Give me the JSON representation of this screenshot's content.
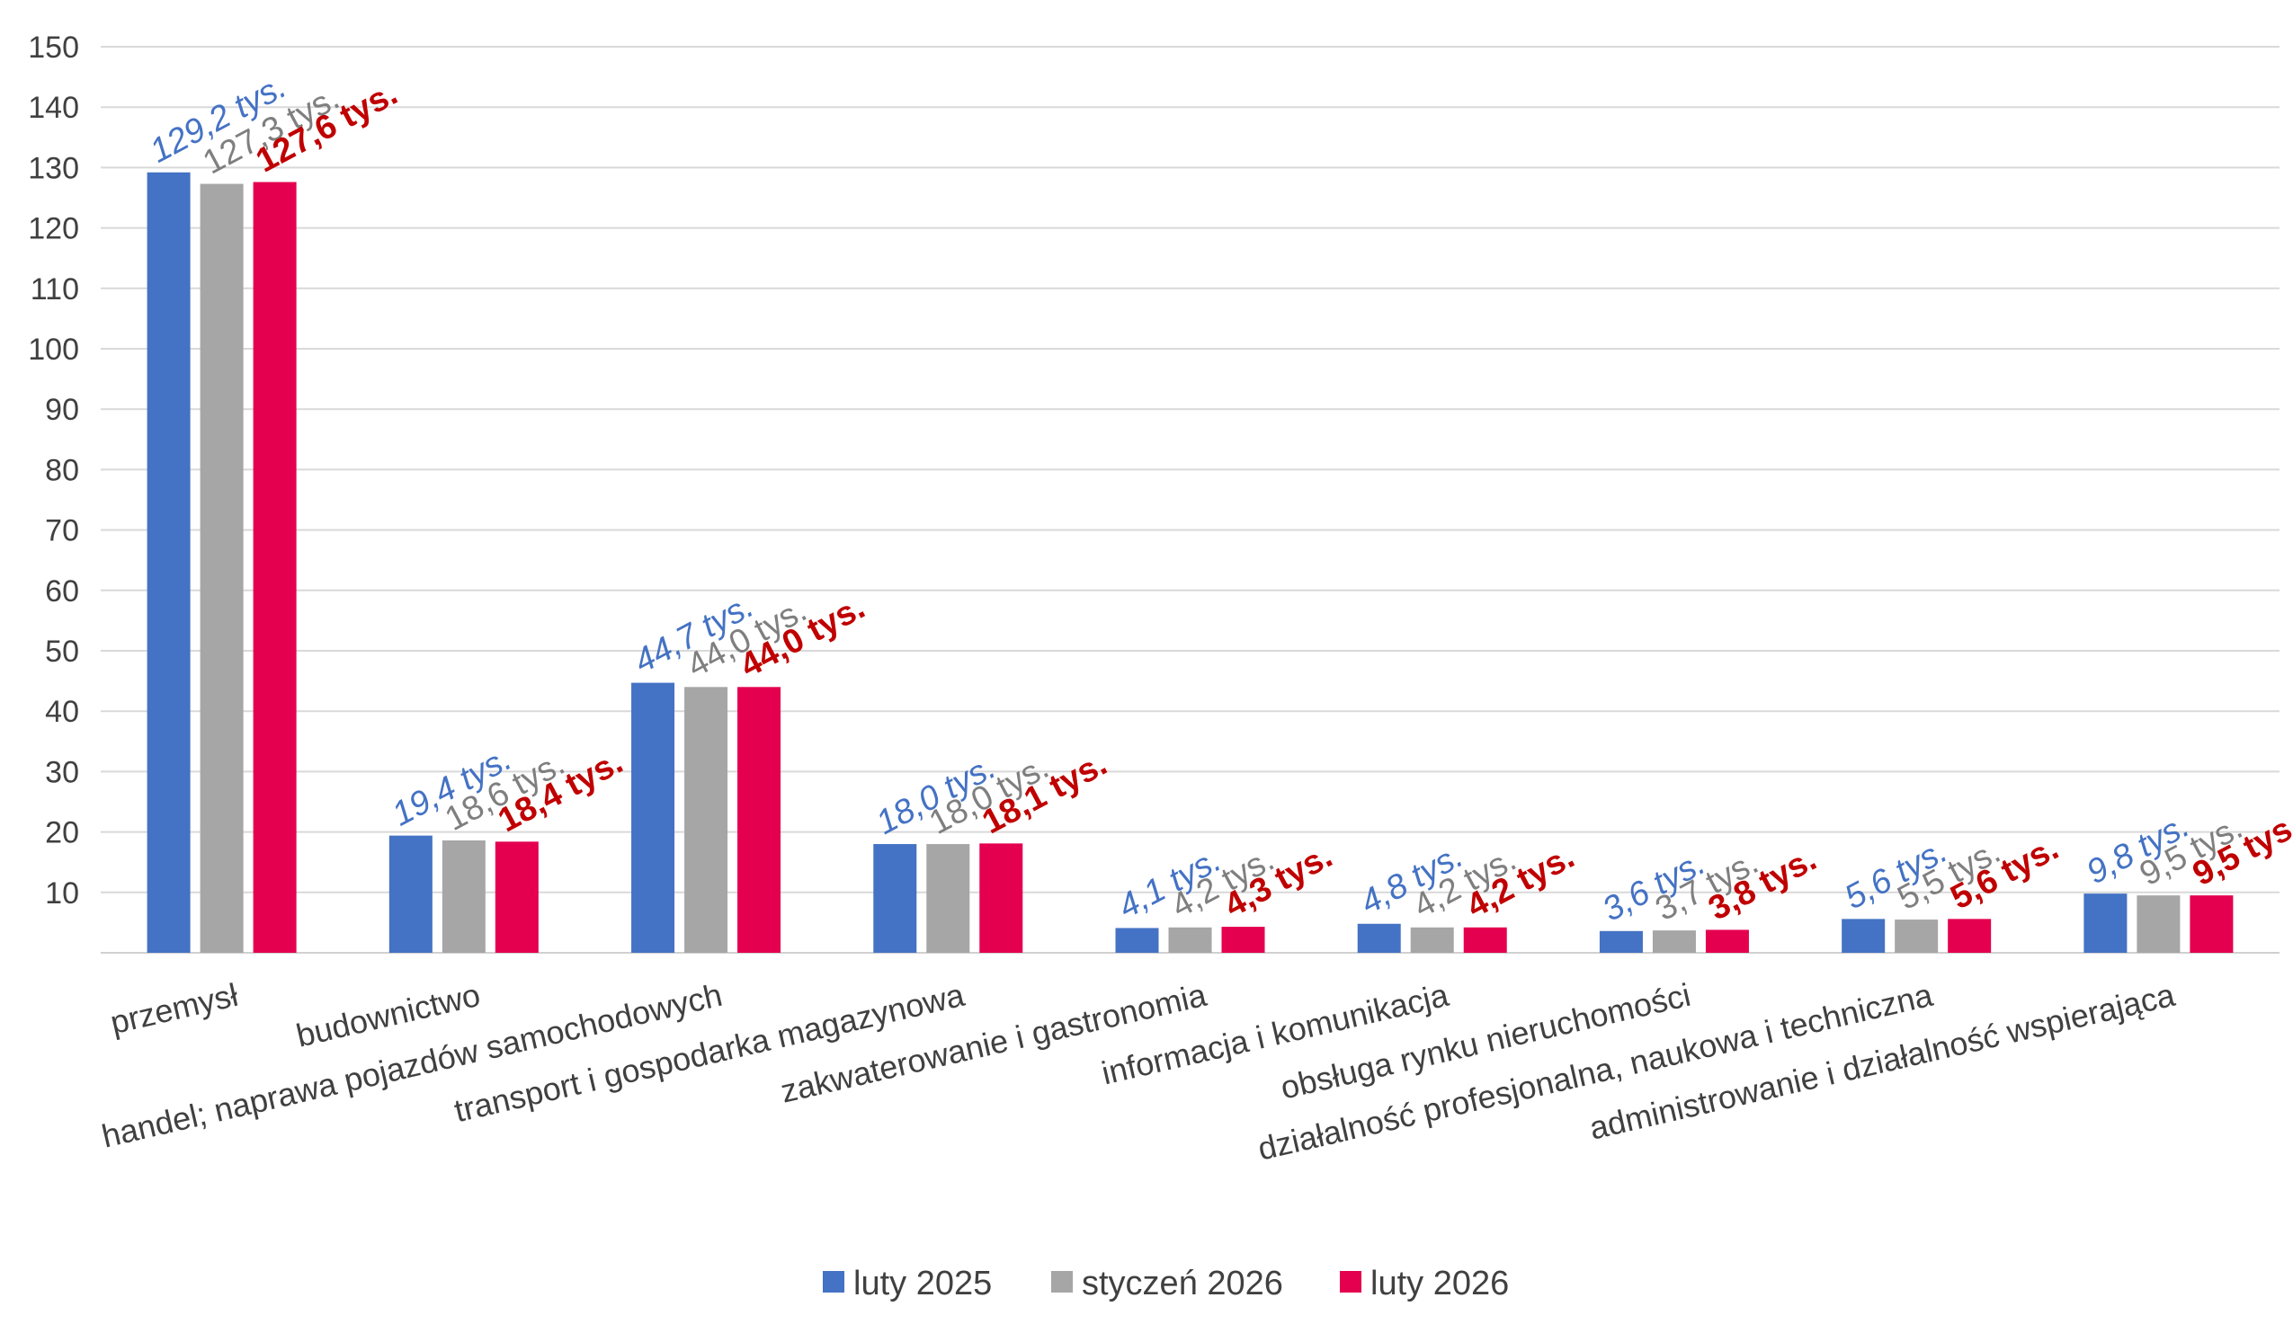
{
  "chart_data": {
    "type": "bar",
    "categories": [
      "przemysł",
      "budownictwo",
      "handel; naprawa pojazdów samochodowych",
      "transport i gospodarka magazynowa",
      "zakwaterowanie i gastronomia",
      "informacja i komunikacja",
      "obsługa rynku nieruchomości",
      "działalność profesjonalna, naukowa i techniczna",
      "administrowanie i działalność wspierająca"
    ],
    "ylim": [
      0,
      150
    ],
    "yticks": [
      "10",
      "20",
      "30",
      "40",
      "50",
      "60",
      "70",
      "80",
      "90",
      "100",
      "110",
      "120",
      "130",
      "140",
      "150"
    ],
    "grid": true,
    "legend_position": "bottom-center",
    "series": [
      {
        "name": "luty 2025",
        "color": "#4472C4",
        "label_color": "#4472C4",
        "label_style": "italic",
        "values": [
          129.2,
          19.4,
          44.7,
          18.0,
          4.1,
          4.8,
          3.6,
          5.6,
          9.8
        ],
        "labels": [
          "129,2 tys.",
          "19,4 tys.",
          "44,7 tys.",
          "18,0 tys.",
          "4,1 tys.",
          "4,8 tys.",
          "3,6 tys.",
          "5,6 tys.",
          "9,8 tys."
        ]
      },
      {
        "name": "styczeń 2026",
        "color": "#A6A6A6",
        "label_color": "#7F7F7F",
        "label_style": "normal",
        "values": [
          127.3,
          18.6,
          44.0,
          18.0,
          4.2,
          4.2,
          3.7,
          5.5,
          9.5
        ],
        "labels": [
          "127,3 tys.",
          "18,6 tys.",
          "44,0 tys.",
          "18,0 tys.",
          "4,2 tys.",
          "4,2 tys.",
          "3,7 tys.",
          "5,5 tys.",
          "9,5 tys."
        ]
      },
      {
        "name": "luty 2026",
        "color": "#E4004F",
        "label_color": "#C00000",
        "label_style": "bold",
        "values": [
          127.6,
          18.4,
          44.0,
          18.1,
          4.3,
          4.2,
          3.8,
          5.6,
          9.5
        ],
        "labels": [
          "127,6 tys.",
          "18,4 tys.",
          "44,0 tys.",
          "18,1 tys.",
          "4,3 tys.",
          "4,2 tys.",
          "3,8 tys.",
          "5,6 tys.",
          "9,5 tys."
        ]
      }
    ]
  }
}
